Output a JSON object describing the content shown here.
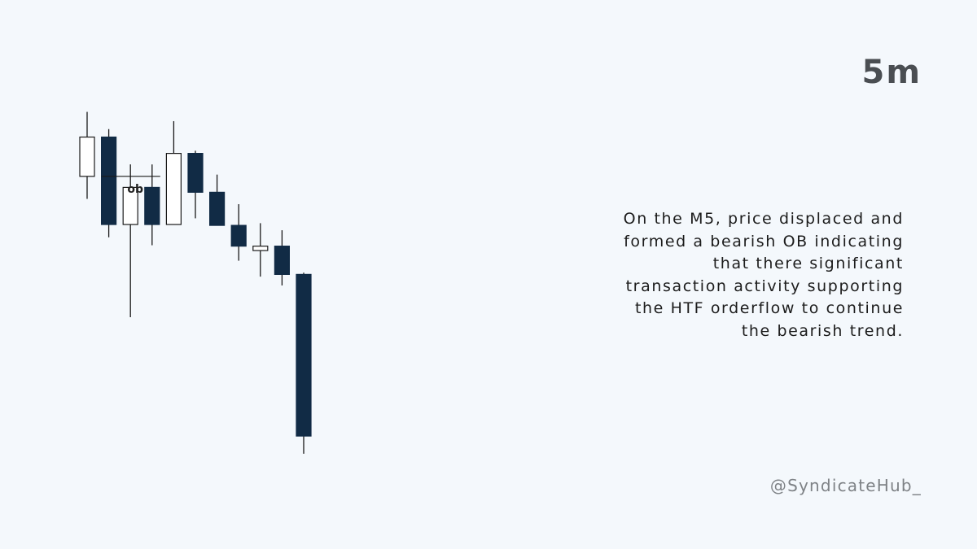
{
  "timeframe_label": "5m",
  "caption_lines": [
    "On the M5, price displaced and",
    "formed a bearish OB indicating",
    "that there significant",
    "transaction activity supporting",
    "the HTF orderflow to continue",
    "the bearish trend."
  ],
  "handle": "@SyndicateHub_",
  "colors": {
    "background": "#f4f8fc",
    "bearish": "#112b45",
    "bullish": "#ffffff",
    "wick": "#1a1a1a"
  },
  "chart_data": {
    "type": "candlestick",
    "title": "",
    "xlabel": "",
    "ylabel": "",
    "ylim": [
      0,
      100
    ],
    "candles": [
      {
        "open": 74.8,
        "high": 89.4,
        "low": 69.7,
        "close": 83.7
      },
      {
        "open": 83.7,
        "high": 85.5,
        "low": 61.0,
        "close": 63.9
      },
      {
        "open": 63.9,
        "high": 77.5,
        "low": 42.9,
        "close": 72.3
      },
      {
        "open": 72.3,
        "high": 77.5,
        "low": 59.2,
        "close": 63.9
      },
      {
        "open": 63.9,
        "high": 87.3,
        "low": 63.9,
        "close": 80.0
      },
      {
        "open": 80.0,
        "high": 80.6,
        "low": 65.3,
        "close": 71.2
      },
      {
        "open": 71.2,
        "high": 75.2,
        "low": 63.9,
        "close": 63.7
      },
      {
        "open": 63.7,
        "high": 68.5,
        "low": 55.7,
        "close": 59.0
      },
      {
        "open": 58.0,
        "high": 64.2,
        "low": 52.1,
        "close": 59.0
      },
      {
        "open": 59.0,
        "high": 62.6,
        "low": 50.1,
        "close": 52.6
      },
      {
        "open": 52.6,
        "high": 53.0,
        "low": 12.0,
        "close": 16.0
      }
    ],
    "annotations": [
      {
        "label": "ob",
        "candle_index": 1,
        "level": 74.8
      }
    ]
  }
}
